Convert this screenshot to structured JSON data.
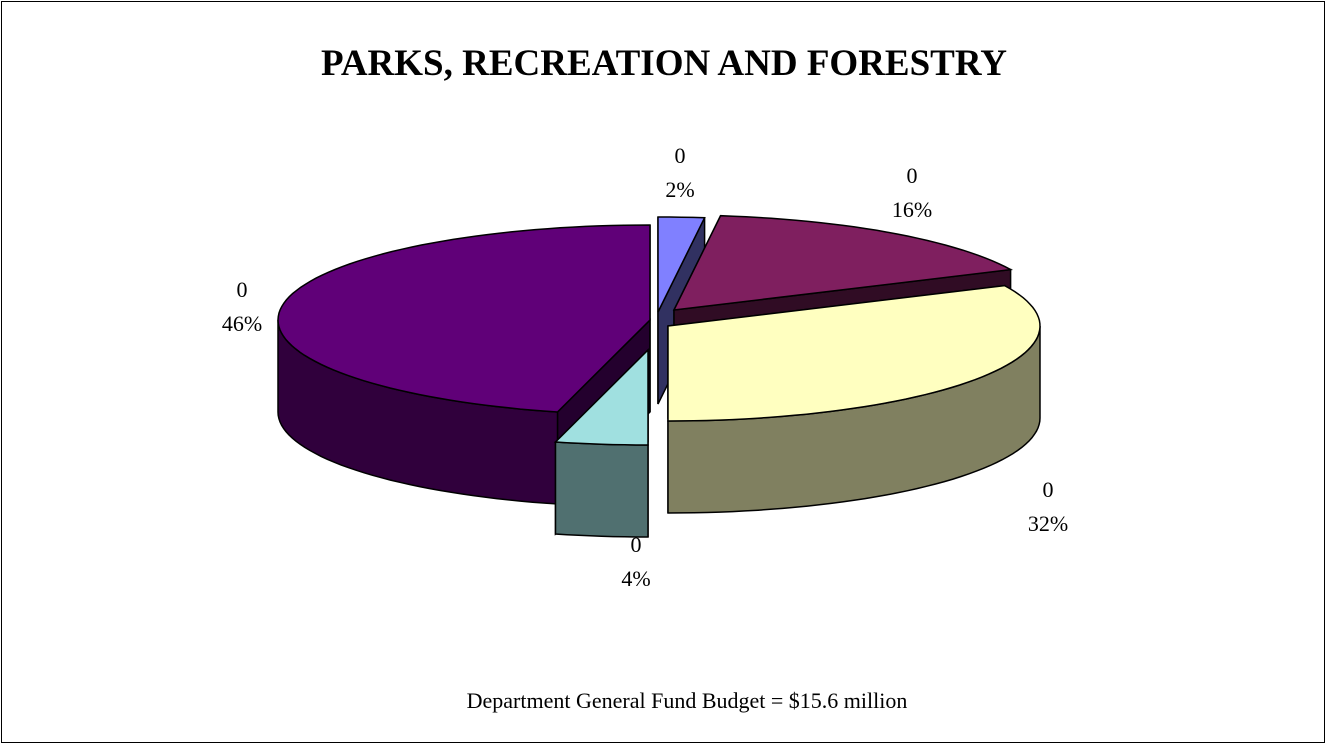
{
  "chart_data": {
    "type": "pie",
    "title": "PARKS, RECREATION AND FORESTRY",
    "note": "Department General Fund Budget = $15.6 million",
    "slices": [
      {
        "category": "0",
        "percent": "2%",
        "value": 2,
        "color": "#8080FF"
      },
      {
        "category": "0",
        "percent": "16%",
        "value": 16,
        "color": "#7F1F5F"
      },
      {
        "category": "0",
        "percent": "32%",
        "value": 32,
        "color": "#FFFFC0"
      },
      {
        "category": "0",
        "percent": "4%",
        "value": 4,
        "color": "#A0E0E0"
      },
      {
        "category": "0",
        "percent": "46%",
        "value": 46,
        "color": "#600078"
      }
    ]
  }
}
